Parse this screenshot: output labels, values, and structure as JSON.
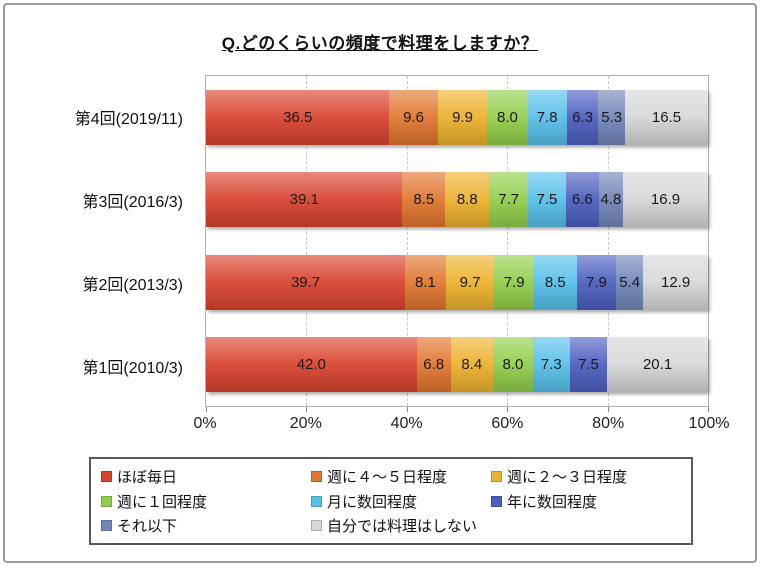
{
  "chart_data": {
    "type": "bar",
    "stacked": true,
    "orientation": "horizontal",
    "title": "Q.どのくらいの頻度で料理をしますか？",
    "categories": [
      "第4回(2019/11)",
      "第3回(2016/3)",
      "第2回(2013/3)",
      "第1回(2010/3)"
    ],
    "series": [
      {
        "name": "ほぼ毎日",
        "color": "#d9432e",
        "values": [
          36.5,
          39.1,
          39.7,
          42.0
        ]
      },
      {
        "name": "週に４～５日程度",
        "color": "#e1762f",
        "values": [
          9.6,
          8.5,
          8.1,
          6.8
        ]
      },
      {
        "name": "週に２～３日程度",
        "color": "#edb22d",
        "values": [
          9.9,
          8.8,
          9.7,
          8.4
        ]
      },
      {
        "name": "週に１回程度",
        "color": "#92ce4a",
        "values": [
          8.0,
          7.7,
          7.9,
          8.0
        ]
      },
      {
        "name": "月に数回程度",
        "color": "#57c0ea",
        "values": [
          7.8,
          7.5,
          8.5,
          7.3
        ]
      },
      {
        "name": "年に数回程度",
        "color": "#4d5fc0",
        "values": [
          6.3,
          6.6,
          7.9,
          7.5
        ]
      },
      {
        "name": "それ以下",
        "color": "#7386ba",
        "values": [
          5.3,
          4.8,
          5.4,
          0
        ]
      },
      {
        "name": "自分では料理はしない",
        "color": "#d7d7d7",
        "values": [
          16.5,
          16.9,
          12.9,
          20.1
        ]
      }
    ],
    "x_ticks": [
      "0%",
      "20%",
      "40%",
      "60%",
      "80%",
      "100%"
    ],
    "xlim": [
      0,
      100
    ],
    "grid": "vertical-dashed",
    "legend_position": "bottom"
  }
}
